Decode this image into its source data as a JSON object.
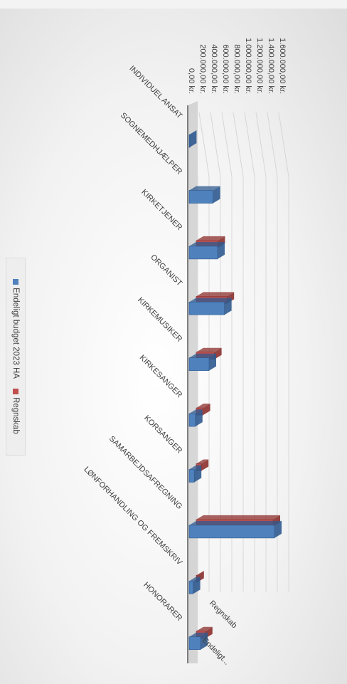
{
  "chart_data": {
    "type": "bar",
    "orientation": "3d-clustered-column, displayed rotated 90 degrees",
    "categories": [
      "INDIVIDUEL ANSAT",
      "SOGNEMEDHJÆLPER",
      "KIRKETJENER",
      "ORGANIST",
      "KIRKEMUSIKER",
      "KIRKESANGER",
      "KORSANGER",
      "SAMARBEJDSAFREGNING",
      "LØNFORHANDLING OG FREMSKRIV",
      "HONORARER"
    ],
    "series": [
      {
        "name": "Endeligt budget 2023 HA",
        "color": "#4f81bd",
        "values": [
          5000,
          420000,
          500000,
          620000,
          350000,
          110000,
          90000,
          1500000,
          70000,
          200000
        ]
      },
      {
        "name": "Regnskab",
        "color": "#c0504d",
        "values": [
          0,
          0,
          380000,
          540000,
          320000,
          120000,
          90000,
          1350000,
          10000,
          160000
        ]
      }
    ],
    "y_ticks": [
      "0,00 kr.",
      "200.000,00 kr.",
      "400.000,00 kr.",
      "600.000,00 kr.",
      "800.000,00 kr.",
      "1.000.000,00 kr.",
      "1.200.000,00 kr.",
      "1.400.000,00 kr.",
      "1.600.000,00 kr."
    ],
    "ylim": [
      0,
      1600000
    ],
    "depth_labels": [
      "Regnskab",
      "Endeligt..."
    ],
    "legend": [
      "Endeligt budget 2023 HA",
      "Regnskab"
    ],
    "legend_position": "bottom",
    "grid": true
  }
}
